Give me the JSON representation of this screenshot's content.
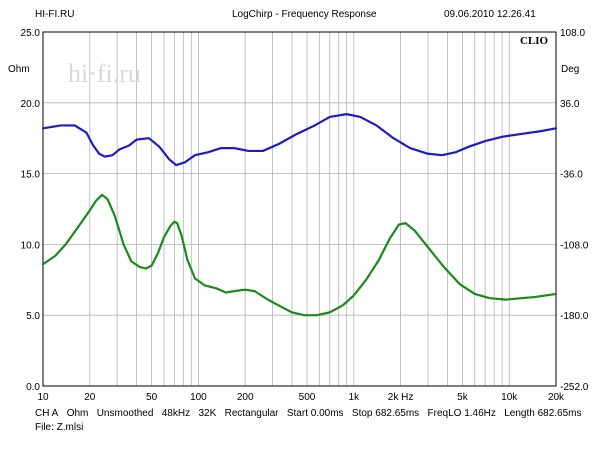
{
  "header": {
    "left": "HI-FI.RU",
    "center": "LogChirp - Frequency Response",
    "right": "09.06.2010 12.26.41"
  },
  "watermark": "hi·fi.ru",
  "brand": "CLIO",
  "footer": {
    "line1": [
      "CH A",
      "Ohm",
      "Unsmoothed",
      "48kHz",
      "32K",
      "Rectangular",
      "Start 0.00ms",
      "Stop 682.65ms",
      "FreqLO 1.46Hz",
      "Length 682.65ms"
    ],
    "line2": "File: Z.mlsi"
  },
  "chart_data": {
    "type": "line",
    "x_scale": "log",
    "xlim": [
      10,
      20000
    ],
    "ylim": [
      0,
      25
    ],
    "y2lim": [
      -252,
      108
    ],
    "ylabel": "Ohm",
    "y2label": "Deg",
    "xticks": [
      {
        "v": 10,
        "label": "10"
      },
      {
        "v": 20,
        "label": "20"
      },
      {
        "v": 50,
        "label": "50"
      },
      {
        "v": 100,
        "label": "100"
      },
      {
        "v": 200,
        "label": "200"
      },
      {
        "v": 500,
        "label": "500"
      },
      {
        "v": 1000,
        "label": "1k"
      },
      {
        "v": 2000,
        "label": "2k Hz"
      },
      {
        "v": 5000,
        "label": "5k"
      },
      {
        "v": 10000,
        "label": "10k"
      },
      {
        "v": 20000,
        "label": "20k"
      }
    ],
    "yticks": [
      {
        "v": 0,
        "label": "0.0"
      },
      {
        "v": 5,
        "label": "5.0"
      },
      {
        "v": 10,
        "label": "10.0"
      },
      {
        "v": 15,
        "label": "15.0"
      },
      {
        "v": 20,
        "label": "20.0"
      },
      {
        "v": 25,
        "label": "25.0"
      }
    ],
    "y2ticks": [
      {
        "v": 108,
        "label": "108.0"
      },
      {
        "v": 36,
        "label": "36.0"
      },
      {
        "v": -36,
        "label": "-36.0"
      },
      {
        "v": -108,
        "label": "-108.0"
      },
      {
        "v": -180,
        "label": "-180.0"
      },
      {
        "v": -252,
        "label": "-252.0"
      }
    ],
    "grid": true,
    "series": [
      {
        "color": "#1c1cc8",
        "axis": "left",
        "points": [
          [
            10,
            18.2
          ],
          [
            13,
            18.4
          ],
          [
            16,
            18.4
          ],
          [
            19,
            17.9
          ],
          [
            21,
            17.0
          ],
          [
            23,
            16.4
          ],
          [
            25,
            16.2
          ],
          [
            28,
            16.3
          ],
          [
            31,
            16.7
          ],
          [
            36,
            17.0
          ],
          [
            40,
            17.4
          ],
          [
            48,
            17.5
          ],
          [
            56,
            16.9
          ],
          [
            65,
            16.0
          ],
          [
            72,
            15.6
          ],
          [
            82,
            15.8
          ],
          [
            95,
            16.3
          ],
          [
            115,
            16.5
          ],
          [
            140,
            16.8
          ],
          [
            170,
            16.8
          ],
          [
            210,
            16.6
          ],
          [
            260,
            16.6
          ],
          [
            330,
            17.1
          ],
          [
            430,
            17.8
          ],
          [
            560,
            18.4
          ],
          [
            700,
            19.0
          ],
          [
            900,
            19.2
          ],
          [
            1100,
            19.0
          ],
          [
            1400,
            18.4
          ],
          [
            1800,
            17.5
          ],
          [
            2300,
            16.8
          ],
          [
            3000,
            16.4
          ],
          [
            3700,
            16.3
          ],
          [
            4500,
            16.5
          ],
          [
            5500,
            16.9
          ],
          [
            7000,
            17.3
          ],
          [
            9000,
            17.6
          ],
          [
            12000,
            17.8
          ],
          [
            16000,
            18.0
          ],
          [
            20000,
            18.2
          ]
        ]
      },
      {
        "color": "#1a8a1a",
        "axis": "left",
        "points": [
          [
            10,
            8.6
          ],
          [
            12,
            9.2
          ],
          [
            14,
            10.0
          ],
          [
            17,
            11.3
          ],
          [
            20,
            12.4
          ],
          [
            22,
            13.1
          ],
          [
            24,
            13.5
          ],
          [
            26,
            13.2
          ],
          [
            29,
            12.0
          ],
          [
            33,
            10.0
          ],
          [
            37,
            8.8
          ],
          [
            42,
            8.4
          ],
          [
            46,
            8.3
          ],
          [
            50,
            8.5
          ],
          [
            55,
            9.4
          ],
          [
            60,
            10.5
          ],
          [
            66,
            11.3
          ],
          [
            70,
            11.6
          ],
          [
            73,
            11.5
          ],
          [
            78,
            10.6
          ],
          [
            85,
            8.9
          ],
          [
            95,
            7.6
          ],
          [
            110,
            7.1
          ],
          [
            130,
            6.9
          ],
          [
            150,
            6.6
          ],
          [
            170,
            6.7
          ],
          [
            200,
            6.8
          ],
          [
            230,
            6.7
          ],
          [
            280,
            6.1
          ],
          [
            340,
            5.6
          ],
          [
            400,
            5.2
          ],
          [
            480,
            5.0
          ],
          [
            580,
            5.0
          ],
          [
            700,
            5.2
          ],
          [
            850,
            5.7
          ],
          [
            1000,
            6.4
          ],
          [
            1200,
            7.5
          ],
          [
            1450,
            8.9
          ],
          [
            1700,
            10.4
          ],
          [
            1950,
            11.4
          ],
          [
            2150,
            11.5
          ],
          [
            2450,
            11.0
          ],
          [
            3000,
            9.8
          ],
          [
            3800,
            8.4
          ],
          [
            4800,
            7.2
          ],
          [
            6000,
            6.5
          ],
          [
            7500,
            6.2
          ],
          [
            9500,
            6.1
          ],
          [
            12000,
            6.2
          ],
          [
            15000,
            6.3
          ],
          [
            20000,
            6.5
          ]
        ]
      }
    ]
  }
}
